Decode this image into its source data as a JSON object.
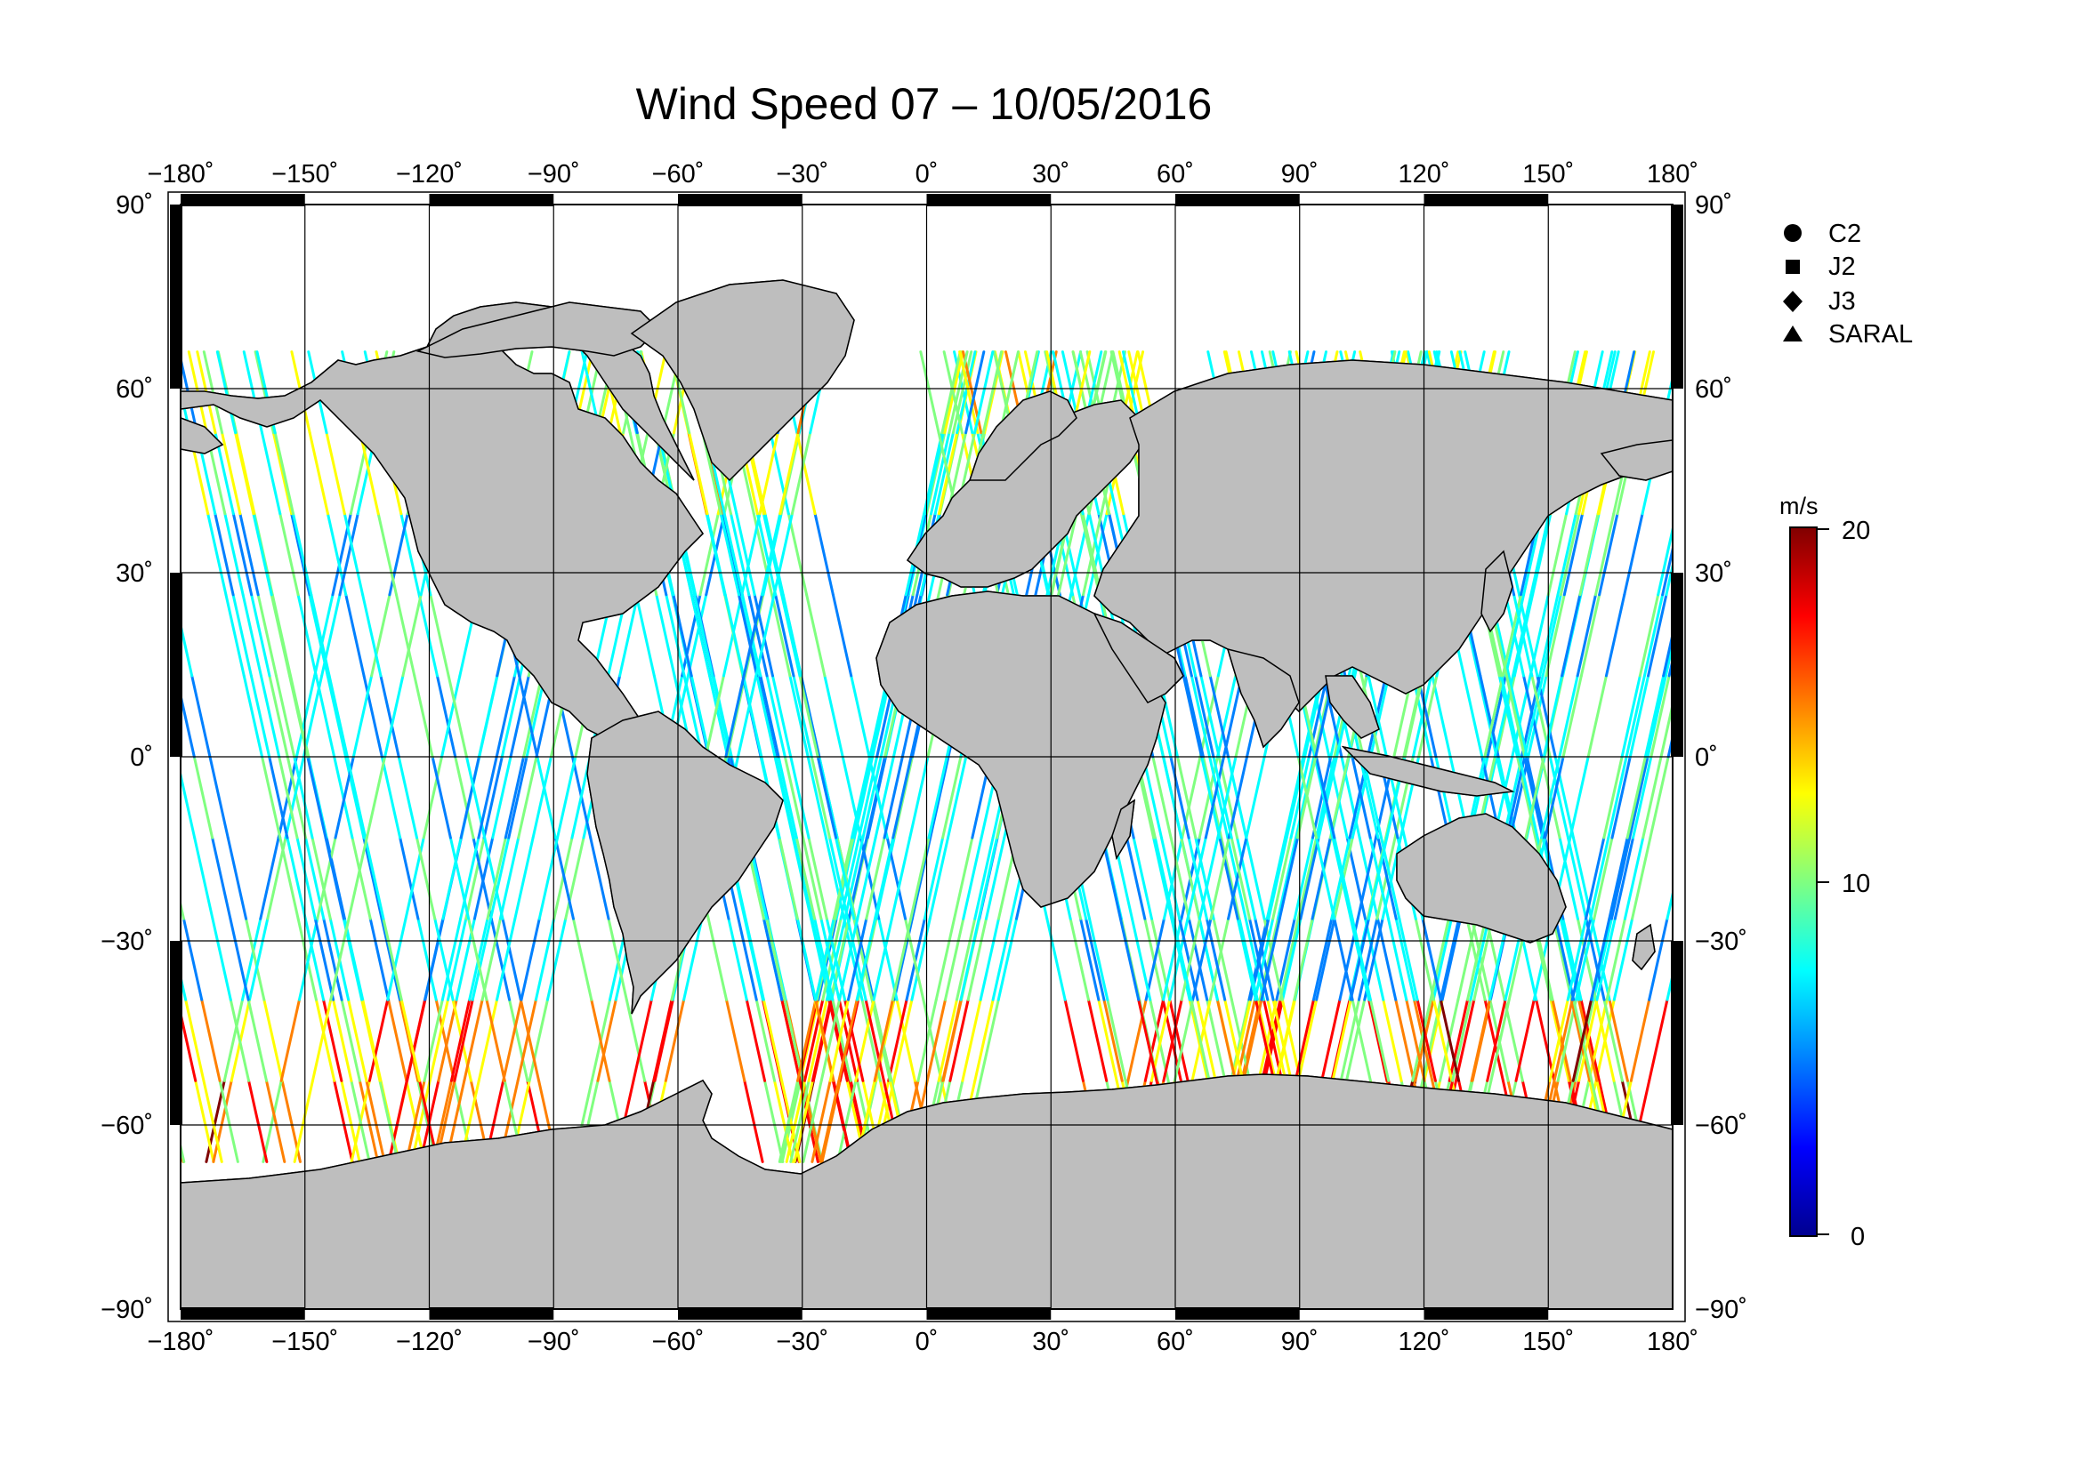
{
  "title": "Wind Speed 07 – 10/05/2016",
  "map": {
    "lon_ticks": [
      "−180˚",
      "−150˚",
      "−120˚",
      "−90˚",
      "−60˚",
      "−30˚",
      "0˚",
      "30˚",
      "60˚",
      "90˚",
      "120˚",
      "150˚",
      "180˚"
    ],
    "lat_ticks": [
      "90˚",
      "60˚",
      "30˚",
      "0˚",
      "−30˚",
      "−60˚",
      "−90˚"
    ],
    "lon_range": [
      -180,
      180
    ],
    "lat_range": [
      -90,
      90
    ],
    "projection": "Equirectangular",
    "colors": {
      "land": "#bebebe",
      "ocean": "#ffffff",
      "frame": "#000000"
    }
  },
  "legend": {
    "items": [
      {
        "symbol": "circle",
        "label": "C2"
      },
      {
        "symbol": "square",
        "label": "J2"
      },
      {
        "symbol": "diamond",
        "label": "J3"
      },
      {
        "symbol": "triangle",
        "label": "SARAL"
      }
    ]
  },
  "colorbar": {
    "unit": "m/s",
    "min": 0,
    "max": 20,
    "tick_labels": [
      "20",
      "10",
      "0"
    ],
    "colormap": [
      "#00008f",
      "#0000ff",
      "#0080ff",
      "#00ffff",
      "#80ff80",
      "#ffff00",
      "#ff8000",
      "#ff0000",
      "#800000"
    ]
  }
}
